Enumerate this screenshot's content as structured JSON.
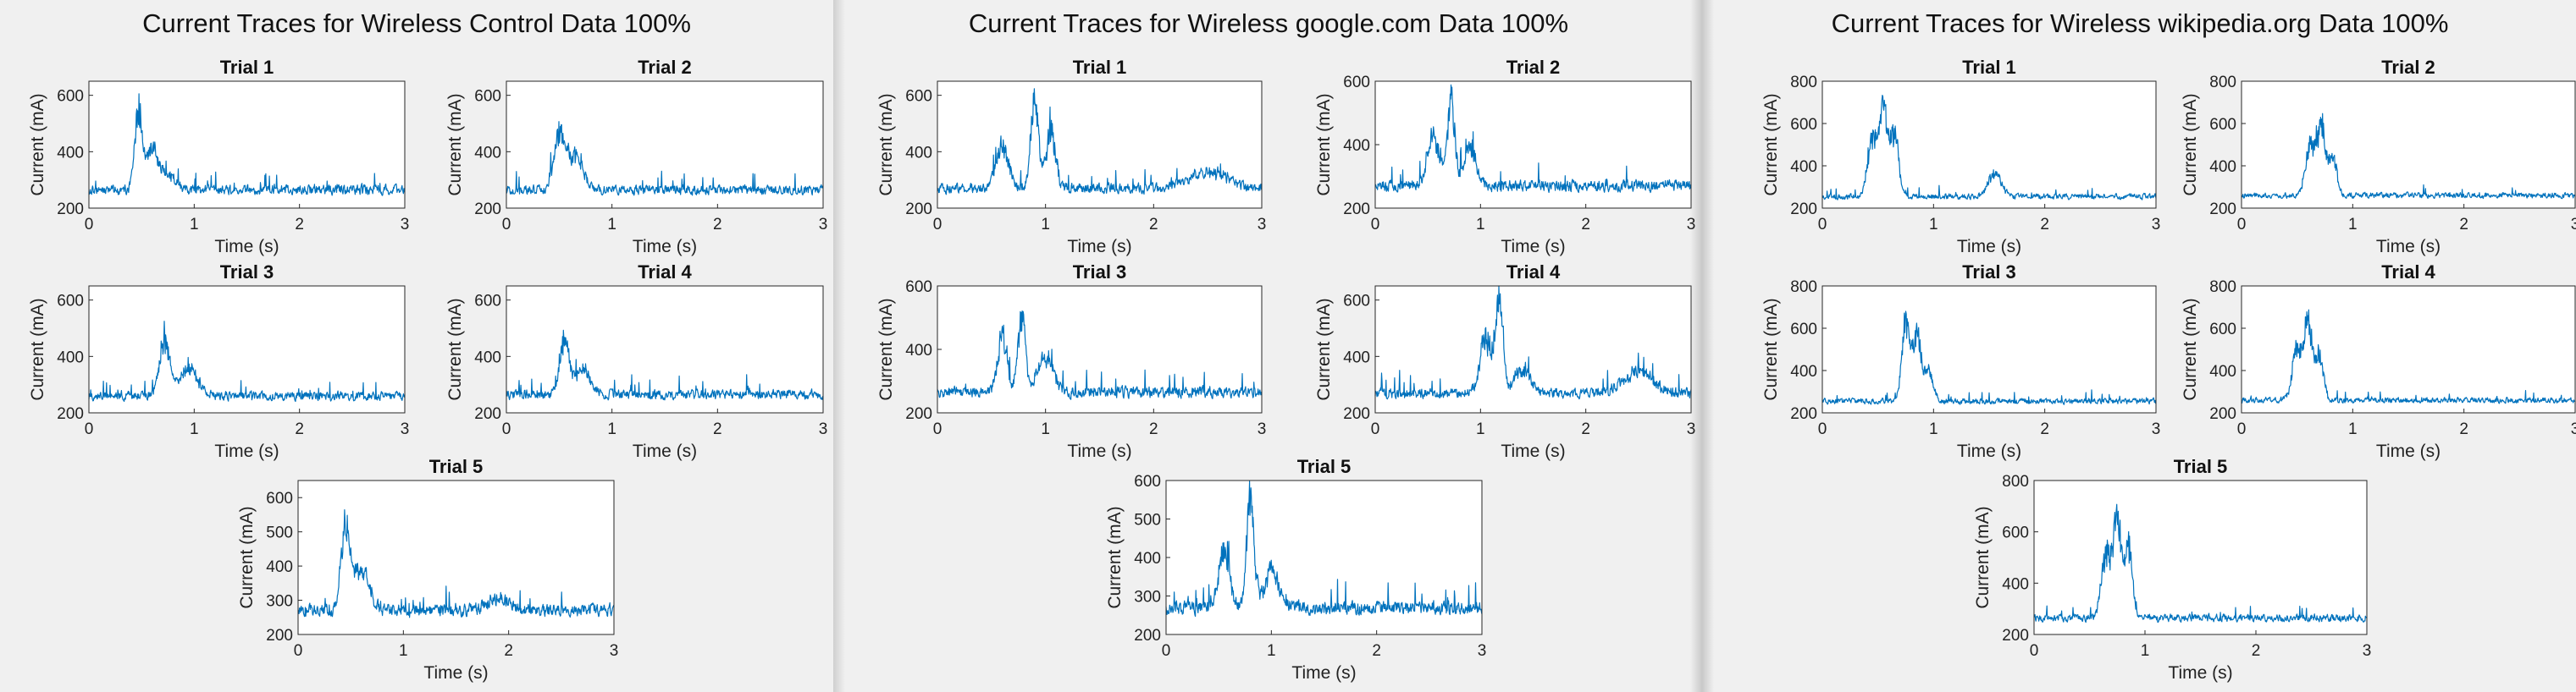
{
  "panels": [
    {
      "title": "Current Traces for Wireless Control Data 100%",
      "chart_data": [
        {
          "type": "line",
          "title": "Trial 1",
          "xlabel": "Time (s)",
          "ylabel": "Current (mA)",
          "xlim": [
            0,
            3
          ],
          "ylim": [
            200,
            650
          ],
          "xticks": [
            0,
            1,
            2,
            3
          ],
          "yticks": [
            200,
            400,
            600
          ],
          "color": "#0072BD",
          "baseline": 265,
          "noise": 28,
          "peaks": [
            {
              "t": 0.47,
              "v": 590,
              "w": 0.05
            },
            {
              "t": 0.6,
              "v": 430,
              "w": 0.08
            },
            {
              "t": 0.75,
              "v": 330,
              "w": 0.1
            }
          ]
        },
        {
          "type": "line",
          "title": "Trial 2",
          "xlabel": "Time (s)",
          "ylabel": "Current (mA)",
          "xlim": [
            0,
            3
          ],
          "ylim": [
            200,
            650
          ],
          "xticks": [
            0,
            1,
            2,
            3
          ],
          "yticks": [
            200,
            400,
            600
          ],
          "color": "#0072BD",
          "baseline": 265,
          "noise": 28,
          "peaks": [
            {
              "t": 0.5,
              "v": 510,
              "w": 0.07
            },
            {
              "t": 0.65,
              "v": 420,
              "w": 0.1
            }
          ]
        },
        {
          "type": "line",
          "title": "Trial 3",
          "xlabel": "Time (s)",
          "ylabel": "Current (mA)",
          "xlim": [
            0,
            3
          ],
          "ylim": [
            200,
            650
          ],
          "xticks": [
            0,
            1,
            2,
            3
          ],
          "yticks": [
            200,
            400,
            600
          ],
          "color": "#0072BD",
          "baseline": 260,
          "noise": 26,
          "peaks": [
            {
              "t": 0.72,
              "v": 490,
              "w": 0.07
            },
            {
              "t": 0.95,
              "v": 370,
              "w": 0.12
            }
          ]
        },
        {
          "type": "line",
          "title": "Trial 4",
          "xlabel": "Time (s)",
          "ylabel": "Current (mA)",
          "xlim": [
            0,
            3
          ],
          "ylim": [
            200,
            650
          ],
          "xticks": [
            0,
            1,
            2,
            3
          ],
          "yticks": [
            200,
            400,
            600
          ],
          "color": "#0072BD",
          "baseline": 265,
          "noise": 28,
          "peaks": [
            {
              "t": 0.55,
              "v": 500,
              "w": 0.06
            },
            {
              "t": 0.72,
              "v": 380,
              "w": 0.1
            }
          ]
        },
        {
          "type": "line",
          "title": "Trial 5",
          "xlabel": "Time (s)",
          "ylabel": "Current (mA)",
          "xlim": [
            0,
            3
          ],
          "ylim": [
            200,
            650
          ],
          "xticks": [
            0,
            1,
            2,
            3
          ],
          "yticks": [
            200,
            300,
            400,
            500,
            600
          ],
          "color": "#0072BD",
          "baseline": 270,
          "noise": 30,
          "peaks": [
            {
              "t": 0.45,
              "v": 550,
              "w": 0.06
            },
            {
              "t": 0.6,
              "v": 420,
              "w": 0.1
            },
            {
              "t": 1.9,
              "v": 310,
              "w": 0.15
            }
          ]
        }
      ]
    },
    {
      "title": "Current Traces for Wireless google.com Data 100%",
      "chart_data": [
        {
          "type": "line",
          "title": "Trial 1",
          "xlabel": "Time (s)",
          "ylabel": "Current (mA)",
          "xlim": [
            0,
            3
          ],
          "ylim": [
            200,
            650
          ],
          "xticks": [
            0,
            1,
            2,
            3
          ],
          "yticks": [
            200,
            400,
            600
          ],
          "color": "#0072BD",
          "baseline": 270,
          "noise": 30,
          "peaks": [
            {
              "t": 0.6,
              "v": 460,
              "w": 0.08
            },
            {
              "t": 0.9,
              "v": 650,
              "w": 0.05
            },
            {
              "t": 1.05,
              "v": 520,
              "w": 0.06
            },
            {
              "t": 2.5,
              "v": 340,
              "w": 0.25
            }
          ]
        },
        {
          "type": "line",
          "title": "Trial 2",
          "xlabel": "Time (s)",
          "ylabel": "Current (mA)",
          "xlim": [
            0,
            3
          ],
          "ylim": [
            200,
            600
          ],
          "xticks": [
            0,
            1,
            2,
            3
          ],
          "yticks": [
            200,
            400,
            600
          ],
          "color": "#0072BD",
          "baseline": 270,
          "noise": 30,
          "peaks": [
            {
              "t": 0.55,
              "v": 460,
              "w": 0.08
            },
            {
              "t": 0.72,
              "v": 600,
              "w": 0.05
            },
            {
              "t": 0.9,
              "v": 420,
              "w": 0.08
            }
          ]
        },
        {
          "type": "line",
          "title": "Trial 3",
          "xlabel": "Time (s)",
          "ylabel": "Current (mA)",
          "xlim": [
            0,
            3
          ],
          "ylim": [
            200,
            600
          ],
          "xticks": [
            0,
            1,
            2,
            3
          ],
          "yticks": [
            200,
            400,
            600
          ],
          "color": "#0072BD",
          "baseline": 265,
          "noise": 30,
          "peaks": [
            {
              "t": 0.6,
              "v": 480,
              "w": 0.06
            },
            {
              "t": 0.78,
              "v": 560,
              "w": 0.05
            },
            {
              "t": 1.0,
              "v": 400,
              "w": 0.1
            }
          ]
        },
        {
          "type": "line",
          "title": "Trial 4",
          "xlabel": "Time (s)",
          "ylabel": "Current (mA)",
          "xlim": [
            0,
            3
          ],
          "ylim": [
            200,
            650
          ],
          "xticks": [
            0,
            1,
            2,
            3
          ],
          "yticks": [
            200,
            400,
            600
          ],
          "color": "#0072BD",
          "baseline": 270,
          "noise": 30,
          "peaks": [
            {
              "t": 1.05,
              "v": 500,
              "w": 0.08
            },
            {
              "t": 1.18,
              "v": 650,
              "w": 0.05
            },
            {
              "t": 1.4,
              "v": 380,
              "w": 0.1
            },
            {
              "t": 2.5,
              "v": 360,
              "w": 0.2
            }
          ]
        },
        {
          "type": "line",
          "title": "Trial 5",
          "xlabel": "Time (s)",
          "ylabel": "Current (mA)",
          "xlim": [
            0,
            3
          ],
          "ylim": [
            200,
            600
          ],
          "xticks": [
            0,
            1,
            2,
            3
          ],
          "yticks": [
            200,
            300,
            400,
            500,
            600
          ],
          "color": "#0072BD",
          "baseline": 270,
          "noise": 30,
          "peaks": [
            {
              "t": 0.55,
              "v": 460,
              "w": 0.07
            },
            {
              "t": 0.8,
              "v": 590,
              "w": 0.05
            },
            {
              "t": 1.0,
              "v": 380,
              "w": 0.1
            }
          ]
        }
      ]
    },
    {
      "title": "Current Traces for Wireless wikipedia.org Data 100%",
      "chart_data": [
        {
          "type": "line",
          "title": "Trial 1",
          "xlabel": "Time (s)",
          "ylabel": "Current (mA)",
          "xlim": [
            0,
            3
          ],
          "ylim": [
            200,
            800
          ],
          "xticks": [
            0,
            1,
            2,
            3
          ],
          "yticks": [
            200,
            400,
            600,
            800
          ],
          "color": "#0072BD",
          "baseline": 255,
          "noise": 22,
          "peaks": [
            {
              "t": 0.45,
              "v": 580,
              "w": 0.06
            },
            {
              "t": 0.55,
              "v": 750,
              "w": 0.05
            },
            {
              "t": 0.65,
              "v": 620,
              "w": 0.05
            },
            {
              "t": 1.55,
              "v": 390,
              "w": 0.08
            }
          ]
        },
        {
          "type": "line",
          "title": "Trial 2",
          "xlabel": "Time (s)",
          "ylabel": "Current (mA)",
          "xlim": [
            0,
            3
          ],
          "ylim": [
            200,
            800
          ],
          "xticks": [
            0,
            1,
            2,
            3
          ],
          "yticks": [
            200,
            400,
            600,
            800
          ],
          "color": "#0072BD",
          "baseline": 260,
          "noise": 22,
          "peaks": [
            {
              "t": 0.62,
              "v": 550,
              "w": 0.06
            },
            {
              "t": 0.72,
              "v": 650,
              "w": 0.05
            },
            {
              "t": 0.82,
              "v": 480,
              "w": 0.05
            }
          ]
        },
        {
          "type": "line",
          "title": "Trial 3",
          "xlabel": "Time (s)",
          "ylabel": "Current (mA)",
          "xlim": [
            0,
            3
          ],
          "ylim": [
            200,
            800
          ],
          "xticks": [
            0,
            1,
            2,
            3
          ],
          "yticks": [
            200,
            400,
            600,
            800
          ],
          "color": "#0072BD",
          "baseline": 255,
          "noise": 22,
          "peaks": [
            {
              "t": 0.75,
              "v": 720,
              "w": 0.05
            },
            {
              "t": 0.85,
              "v": 620,
              "w": 0.05
            },
            {
              "t": 0.95,
              "v": 420,
              "w": 0.06
            }
          ]
        },
        {
          "type": "line",
          "title": "Trial 4",
          "xlabel": "Time (s)",
          "ylabel": "Current (mA)",
          "xlim": [
            0,
            3
          ],
          "ylim": [
            200,
            800
          ],
          "xticks": [
            0,
            1,
            2,
            3
          ],
          "yticks": [
            200,
            400,
            600,
            800
          ],
          "color": "#0072BD",
          "baseline": 260,
          "noise": 22,
          "peaks": [
            {
              "t": 0.5,
              "v": 560,
              "w": 0.06
            },
            {
              "t": 0.6,
              "v": 700,
              "w": 0.05
            },
            {
              "t": 0.7,
              "v": 520,
              "w": 0.05
            }
          ]
        },
        {
          "type": "line",
          "title": "Trial 5",
          "xlabel": "Time (s)",
          "ylabel": "Current (mA)",
          "xlim": [
            0,
            3
          ],
          "ylim": [
            200,
            800
          ],
          "xticks": [
            0,
            1,
            2,
            3
          ],
          "yticks": [
            200,
            400,
            600,
            800
          ],
          "color": "#0072BD",
          "baseline": 265,
          "noise": 24,
          "peaks": [
            {
              "t": 0.65,
              "v": 560,
              "w": 0.06
            },
            {
              "t": 0.75,
              "v": 720,
              "w": 0.05
            },
            {
              "t": 0.85,
              "v": 600,
              "w": 0.05
            }
          ]
        }
      ]
    }
  ]
}
